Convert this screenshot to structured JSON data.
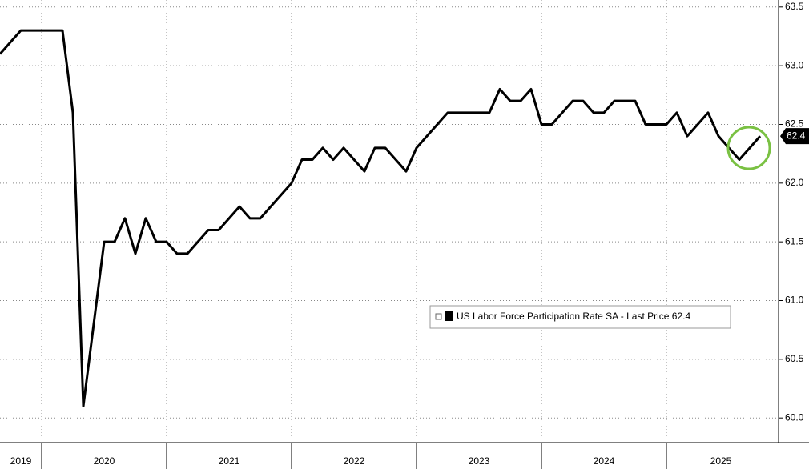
{
  "chart_data": {
    "type": "line",
    "x_labels": [
      "2019",
      "2020",
      "2021",
      "2022",
      "2023",
      "2024",
      "2025"
    ],
    "series": [
      {
        "name": "US Labor Force Participation Rate SA - Last Price 62.4",
        "color": "#000000",
        "values": [
          63.1,
          63.2,
          63.3,
          63.3,
          63.3,
          63.3,
          63.3,
          62.6,
          60.1,
          60.8,
          61.5,
          61.5,
          61.7,
          61.4,
          61.7,
          61.5,
          61.5,
          61.4,
          61.4,
          61.5,
          61.6,
          61.6,
          61.7,
          61.8,
          61.7,
          61.7,
          61.8,
          61.9,
          62.0,
          62.2,
          62.2,
          62.3,
          62.2,
          62.3,
          62.2,
          62.1,
          62.3,
          62.3,
          62.2,
          62.1,
          62.3,
          62.4,
          62.5,
          62.6,
          62.6,
          62.6,
          62.6,
          62.6,
          62.8,
          62.7,
          62.7,
          62.8,
          62.5,
          62.5,
          62.6,
          62.7,
          62.7,
          62.6,
          62.6,
          62.7,
          62.7,
          62.7,
          62.5,
          62.5,
          62.5,
          62.6,
          62.4,
          62.5,
          62.6,
          62.4,
          62.3,
          62.2,
          62.3,
          62.4
        ]
      }
    ],
    "ylim": [
      59.79,
      63.56
    ],
    "yticks": [
      {
        "value": 60.0,
        "label": "60.0"
      },
      60.5,
      {
        "value": 61.0,
        "label": "61.0"
      },
      61.5,
      {
        "value": 62.0,
        "label": "62.0"
      },
      62.5,
      {
        "value": 63.0,
        "label": "63.0"
      },
      63.5
    ],
    "grid": true
  }
}
